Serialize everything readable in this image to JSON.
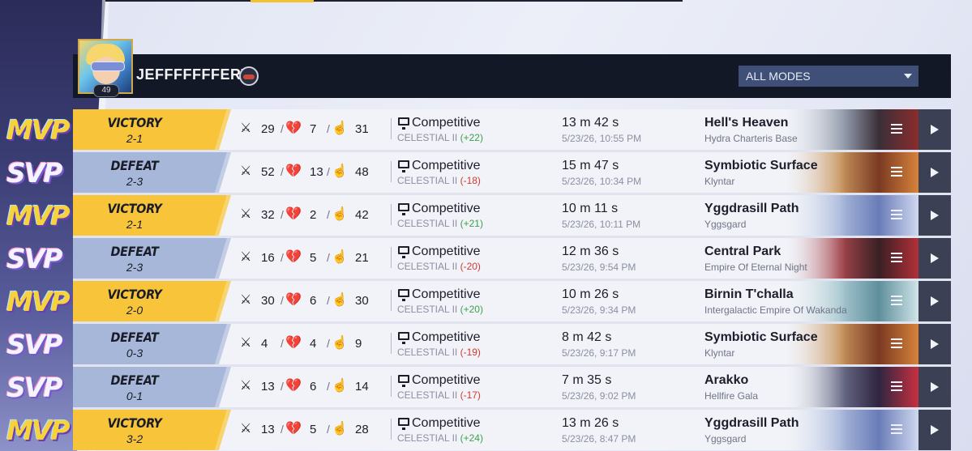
{
  "header": {
    "player_name": "JEFFFFFFFERY",
    "level": "49",
    "mode_filter": "ALL MODES"
  },
  "colors": {
    "victory": "#f8c53a",
    "defeat": "#a6b7da",
    "rank_gain": "#3aa24a",
    "rank_loss": "#d2382f",
    "header_bg": "#131826"
  },
  "matches": [
    {
      "badge": "MVP",
      "result": "VICTORY",
      "score": "2-1",
      "kills": "29",
      "deaths": "7",
      "assists": "31",
      "mode": "Competitive",
      "rank": "CELESTIAL II",
      "rank_change": "(+22)",
      "duration": "13 m 42 s",
      "datetime": "5/23/26, 10:55 PM",
      "map": "Hell's Heaven",
      "map_sub": "Hydra Charteris Base",
      "win": true
    },
    {
      "badge": "SVP",
      "result": "DEFEAT",
      "score": "2-3",
      "kills": "52",
      "deaths": "13",
      "assists": "48",
      "mode": "Competitive",
      "rank": "CELESTIAL II",
      "rank_change": "(-18)",
      "duration": "15 m 47 s",
      "datetime": "5/23/26, 10:34 PM",
      "map": "Symbiotic Surface",
      "map_sub": "Klyntar",
      "win": false
    },
    {
      "badge": "MVP",
      "result": "VICTORY",
      "score": "2-1",
      "kills": "32",
      "deaths": "2",
      "assists": "42",
      "mode": "Competitive",
      "rank": "CELESTIAL II",
      "rank_change": "(+21)",
      "duration": "10 m 11 s",
      "datetime": "5/23/26, 10:11 PM",
      "map": "Yggdrasill Path",
      "map_sub": "Yggsgard",
      "win": true
    },
    {
      "badge": "SVP",
      "result": "DEFEAT",
      "score": "2-3",
      "kills": "16",
      "deaths": "5",
      "assists": "21",
      "mode": "Competitive",
      "rank": "CELESTIAL II",
      "rank_change": "(-20)",
      "duration": "12 m 36 s",
      "datetime": "5/23/26, 9:54 PM",
      "map": "Central Park",
      "map_sub": "Empire Of Eternal Night",
      "win": false
    },
    {
      "badge": "MVP",
      "result": "VICTORY",
      "score": "2-0",
      "kills": "30",
      "deaths": "6",
      "assists": "30",
      "mode": "Competitive",
      "rank": "CELESTIAL II",
      "rank_change": "(+20)",
      "duration": "10 m 26 s",
      "datetime": "5/23/26, 9:34 PM",
      "map": "Birnin T'challa",
      "map_sub": "Intergalactic Empire Of Wakanda",
      "win": true
    },
    {
      "badge": "SVP",
      "result": "DEFEAT",
      "score": "0-3",
      "kills": "4",
      "deaths": "4",
      "assists": "9",
      "mode": "Competitive",
      "rank": "CELESTIAL II",
      "rank_change": "(-19)",
      "duration": "8 m 42 s",
      "datetime": "5/23/26, 9:17 PM",
      "map": "Symbiotic Surface",
      "map_sub": "Klyntar",
      "win": false
    },
    {
      "badge": "SVP",
      "result": "DEFEAT",
      "score": "0-1",
      "kills": "13",
      "deaths": "6",
      "assists": "14",
      "mode": "Competitive",
      "rank": "CELESTIAL II",
      "rank_change": "(-17)",
      "duration": "7 m 35 s",
      "datetime": "5/23/26, 9:02 PM",
      "map": "Arakko",
      "map_sub": "Hellfire Gala",
      "win": false
    },
    {
      "badge": "MVP",
      "result": "VICTORY",
      "score": "3-2",
      "kills": "13",
      "deaths": "5",
      "assists": "28",
      "mode": "Competitive",
      "rank": "CELESTIAL II",
      "rank_change": "(+24)",
      "duration": "13 m 26 s",
      "datetime": "5/23/26, 8:47 PM",
      "map": "Yggdrasill Path",
      "map_sub": "Yggsgard",
      "win": true
    }
  ],
  "icons": {
    "kills": "crossed-swords-icon",
    "deaths": "broken-heart-icon",
    "assists": "assist-icon",
    "mode": "monitor-icon",
    "details": "list-icon",
    "replay": "play-icon"
  }
}
